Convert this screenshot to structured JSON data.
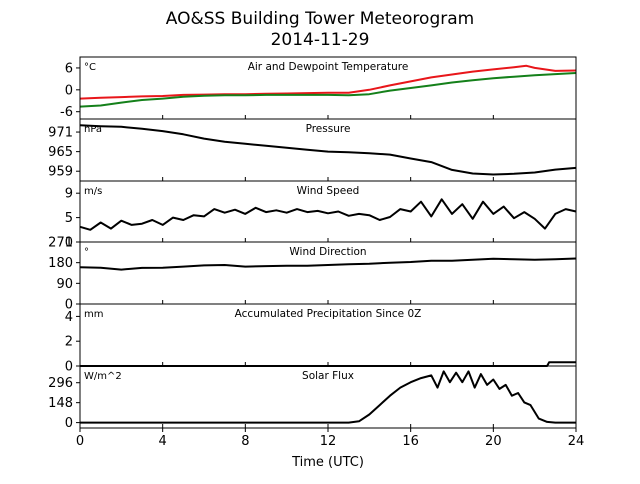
{
  "figure": {
    "title_line1": "AO&SS Building Tower Meteorogram",
    "title_line2": "2014-11-29",
    "xlabel": "Time (UTC)",
    "xticks": [
      0,
      4,
      8,
      12,
      16,
      20,
      24
    ],
    "xlim": [
      0,
      24
    ]
  },
  "colors": {
    "air_temperature": "#e8161a",
    "dewpoint": "#14801a",
    "line": "#000000"
  },
  "chart_data": [
    {
      "type": "line",
      "title": "Air and Dewpoint Temperature",
      "unit": "°C",
      "ylim": [
        -8,
        9
      ],
      "yticks": [
        6,
        0,
        -6
      ],
      "series": [
        {
          "key": "air",
          "color": "#e8161a",
          "x": [
            0,
            1,
            2,
            3,
            4,
            5,
            6,
            7,
            8,
            9,
            10,
            11,
            12,
            13,
            14,
            15,
            16,
            17,
            18,
            19,
            20,
            21,
            21.6,
            22,
            23,
            24
          ],
          "y": [
            -2.4,
            -2.2,
            -2.0,
            -1.8,
            -1.7,
            -1.4,
            -1.3,
            -1.2,
            -1.2,
            -1.1,
            -1.0,
            -0.9,
            -0.8,
            -0.8,
            0.0,
            1.2,
            2.3,
            3.4,
            4.2,
            5.0,
            5.6,
            6.2,
            6.6,
            6.0,
            5.2,
            5.3
          ]
        },
        {
          "key": "dew",
          "color": "#14801a",
          "x": [
            0,
            1,
            2,
            3,
            4,
            5,
            6,
            7,
            8,
            9,
            10,
            11,
            12,
            13,
            14,
            15,
            16,
            17,
            18,
            19,
            20,
            21,
            22,
            23,
            24
          ],
          "y": [
            -4.6,
            -4.3,
            -3.5,
            -2.8,
            -2.4,
            -1.9,
            -1.6,
            -1.5,
            -1.5,
            -1.4,
            -1.4,
            -1.4,
            -1.4,
            -1.5,
            -1.2,
            -0.2,
            0.5,
            1.2,
            2.0,
            2.6,
            3.2,
            3.6,
            4.0,
            4.3,
            4.6
          ]
        }
      ]
    },
    {
      "type": "line",
      "title": "Pressure",
      "unit": "hPa",
      "ylim": [
        956,
        975
      ],
      "yticks": [
        971,
        965,
        959
      ],
      "series": [
        {
          "key": "pressure",
          "color": "#000000",
          "x": [
            0,
            1,
            2,
            3,
            4,
            5,
            6,
            7,
            8,
            9,
            10,
            11,
            12,
            13,
            14,
            15,
            16,
            17,
            18,
            19,
            20,
            21,
            22,
            23,
            24
          ],
          "y": [
            973.1,
            972.8,
            972.6,
            972.0,
            971.3,
            970.3,
            969.0,
            968.0,
            967.4,
            966.8,
            966.2,
            965.6,
            965.0,
            964.8,
            964.5,
            964.1,
            962.9,
            961.8,
            959.4,
            958.3,
            958.0,
            958.2,
            958.6,
            959.5,
            960.0
          ]
        }
      ]
    },
    {
      "type": "line",
      "title": "Wind Speed",
      "unit": "m/s",
      "ylim": [
        1,
        11
      ],
      "yticks": [
        9,
        5,
        1
      ],
      "series": [
        {
          "key": "wind_speed",
          "color": "#000000",
          "x": [
            0,
            0.5,
            1,
            1.5,
            2,
            2.5,
            3,
            3.5,
            4,
            4.5,
            5,
            5.5,
            6,
            6.5,
            7,
            7.5,
            8,
            8.5,
            9,
            9.5,
            10,
            10.5,
            11,
            11.5,
            12,
            12.5,
            13,
            13.5,
            14,
            14.5,
            15,
            15.5,
            16,
            16.5,
            17,
            17.5,
            18,
            18.5,
            19,
            19.5,
            20,
            20.5,
            21,
            21.5,
            22,
            22.5,
            23,
            23.5,
            24
          ],
          "y": [
            3.5,
            3.0,
            4.2,
            3.2,
            4.5,
            3.8,
            4.0,
            4.6,
            3.8,
            5.0,
            4.6,
            5.4,
            5.2,
            6.4,
            5.8,
            6.3,
            5.6,
            6.6,
            5.9,
            6.2,
            5.8,
            6.4,
            5.9,
            6.1,
            5.7,
            6.0,
            5.3,
            5.6,
            5.4,
            4.6,
            5.1,
            6.4,
            6.0,
            7.6,
            5.2,
            8.0,
            5.6,
            7.2,
            4.8,
            7.6,
            5.6,
            6.8,
            4.9,
            5.9,
            4.8,
            3.2,
            5.6,
            6.4,
            6.0
          ]
        }
      ]
    },
    {
      "type": "line",
      "title": "Wind Direction",
      "unit": "°",
      "ylim": [
        0,
        270
      ],
      "yticks": [
        270,
        180,
        90,
        0
      ],
      "series": [
        {
          "key": "wind_direction",
          "color": "#000000",
          "x": [
            0,
            1,
            2,
            3,
            4,
            5,
            6,
            7,
            8,
            9,
            10,
            11,
            12,
            13,
            14,
            15,
            16,
            17,
            18,
            19,
            20,
            21,
            22,
            23,
            24
          ],
          "y": [
            160,
            158,
            150,
            157,
            158,
            163,
            168,
            170,
            163,
            165,
            167,
            167,
            170,
            173,
            175,
            180,
            183,
            188,
            188,
            193,
            197,
            195,
            193,
            195,
            198
          ]
        }
      ]
    },
    {
      "type": "line",
      "title": "Accumulated Precipitation Since 0Z",
      "unit": "mm",
      "ylim": [
        0,
        5
      ],
      "yticks": [
        4,
        2,
        0
      ],
      "series": [
        {
          "key": "precipitation",
          "color": "#000000",
          "x": [
            0,
            22.6,
            22.7,
            24
          ],
          "y": [
            0,
            0,
            0.3,
            0.3
          ]
        }
      ]
    },
    {
      "type": "line",
      "title": "Solar Flux",
      "unit": "W/m^2",
      "ylim": [
        -40,
        420
      ],
      "yticks": [
        296,
        148,
        0
      ],
      "series": [
        {
          "key": "solar_flux",
          "color": "#000000",
          "x": [
            0,
            13,
            13.5,
            14,
            14.5,
            15,
            15.5,
            16,
            16.5,
            17,
            17.3,
            17.6,
            17.9,
            18.2,
            18.5,
            18.8,
            19.1,
            19.4,
            19.7,
            20.0,
            20.3,
            20.6,
            20.9,
            21.2,
            21.5,
            21.8,
            22.2,
            22.6,
            23,
            24
          ],
          "y": [
            0,
            0,
            10,
            60,
            130,
            200,
            260,
            300,
            330,
            350,
            260,
            380,
            300,
            370,
            300,
            380,
            260,
            360,
            280,
            320,
            250,
            280,
            200,
            220,
            150,
            130,
            30,
            5,
            0,
            0
          ]
        }
      ]
    }
  ]
}
